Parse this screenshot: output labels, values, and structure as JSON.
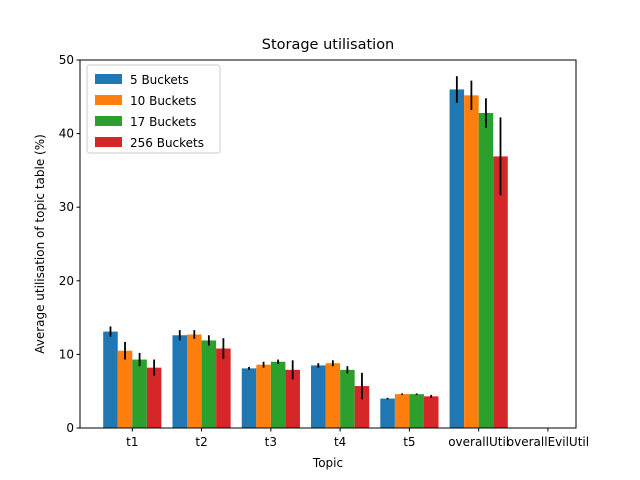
{
  "chart_data": {
    "type": "bar",
    "title": "Storage utilisation",
    "xlabel": "Topic",
    "ylabel": "Average utilisation of topic table (%)",
    "categories": [
      "t1",
      "t2",
      "t3",
      "t4",
      "t5",
      "overallUtil",
      "overallEvilUtil"
    ],
    "ylim": [
      0,
      50
    ],
    "yticks": [
      0,
      10,
      20,
      30,
      40,
      50
    ],
    "legend": "top-left",
    "grid": false,
    "series": [
      {
        "name": "5 Buckets",
        "color": "#1f77b4",
        "values": [
          13.1,
          12.6,
          8.1,
          8.5,
          4.0,
          46.0,
          0
        ],
        "errors": [
          0.7,
          0.7,
          0.2,
          0.3,
          0.1,
          1.8,
          0
        ]
      },
      {
        "name": "10 Buckets",
        "color": "#ff7f0e",
        "values": [
          10.5,
          12.7,
          8.6,
          8.8,
          4.6,
          45.2,
          0
        ],
        "errors": [
          1.2,
          0.6,
          0.4,
          0.4,
          0.1,
          2.0,
          0
        ]
      },
      {
        "name": "17 Buckets",
        "color": "#2ca02c",
        "values": [
          9.3,
          11.9,
          9.0,
          7.9,
          4.6,
          42.8,
          0
        ],
        "errors": [
          0.9,
          0.7,
          0.3,
          0.5,
          0.1,
          2.0,
          0
        ]
      },
      {
        "name": "256 Buckets",
        "color": "#d62728",
        "values": [
          8.2,
          10.8,
          7.9,
          5.7,
          4.3,
          36.9,
          0
        ],
        "errors": [
          1.1,
          1.4,
          1.3,
          1.8,
          0.2,
          5.3,
          0
        ]
      }
    ]
  }
}
